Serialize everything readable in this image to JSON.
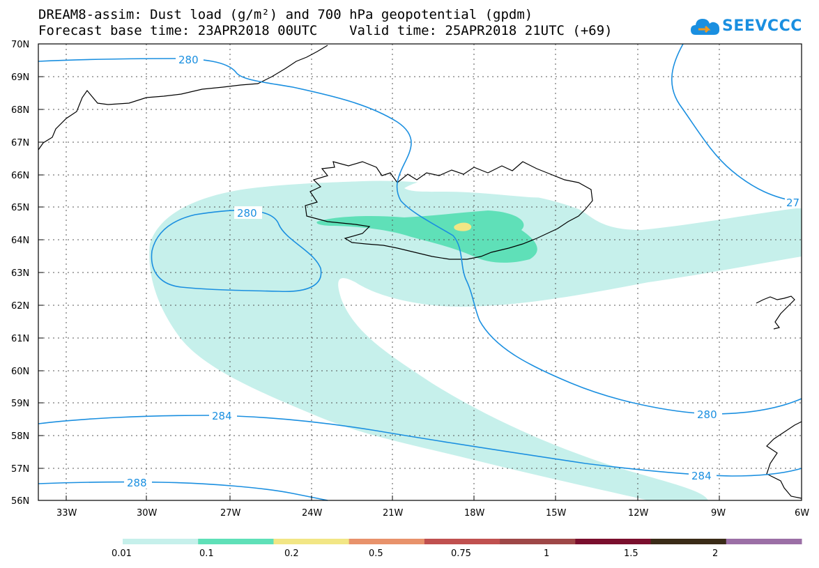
{
  "header": {
    "title_line1": "DREAM8-assim: Dust load (g/m²) and 700 hPa geopotential (gpdm)",
    "title_line2": "Forecast base time: 23APR2018 00UTC    Valid time: 25APR2018 21UTC (+69)",
    "logo_text": "SEEVCCC",
    "logo_icon": "cloud-logo-icon"
  },
  "axes": {
    "lat_ticks": [
      "70N",
      "69N",
      "68N",
      "67N",
      "66N",
      "65N",
      "64N",
      "63N",
      "62N",
      "61N",
      "60N",
      "59N",
      "58N",
      "57N",
      "56N"
    ],
    "lon_ticks": [
      "33W",
      "30W",
      "27W",
      "24W",
      "21W",
      "18W",
      "15W",
      "12W",
      "9W",
      "6W"
    ]
  },
  "contours": {
    "labels": [
      "280",
      "280",
      "280",
      "27",
      "284",
      "284",
      "288"
    ]
  },
  "colorbar": {
    "colors": [
      "#c6f0eb",
      "#5fe0b8",
      "#f2e685",
      "#e8926b",
      "#c0504f",
      "#9e4747",
      "#7a0f2d",
      "#3a2b17",
      "#9b6fa6"
    ],
    "tick_labels": [
      "0.01",
      "0.1",
      "0.2",
      "0.5",
      "0.75",
      "1",
      "1.5",
      "2"
    ]
  },
  "palette": {
    "contour": "#1a8fe0",
    "grid": "#555555",
    "coast": "#000000"
  }
}
